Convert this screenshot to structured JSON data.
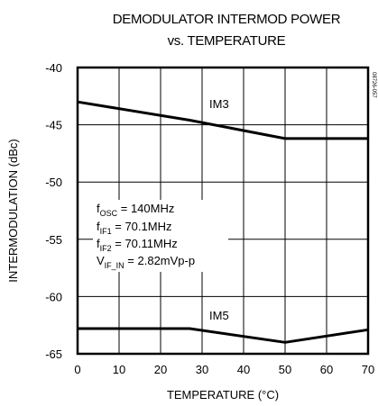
{
  "chart_data": {
    "type": "line",
    "title_lines": [
      "DEMODULATOR INTERMOD POWER",
      "vs. TEMPERATURE"
    ],
    "xlabel": "TEMPERATURE (°C)",
    "ylabel": "INTERMODULATION (dBc)",
    "xlim": [
      0,
      70
    ],
    "ylim": [
      -65,
      -40
    ],
    "x_ticks": [
      0,
      10,
      20,
      30,
      40,
      50,
      60,
      70
    ],
    "y_ticks": [
      -40,
      -45,
      -50,
      -55,
      -60,
      -65
    ],
    "grid": true,
    "series": [
      {
        "name": "IM3",
        "x": [
          0,
          27,
          50,
          70
        ],
        "y": [
          -43.0,
          -44.6,
          -46.2,
          -46.2
        ]
      },
      {
        "name": "IM5",
        "x": [
          0,
          27,
          50,
          70
        ],
        "y": [
          -62.8,
          -62.8,
          -64.0,
          -62.9
        ]
      }
    ],
    "annotations": [
      {
        "main": "f",
        "sub": "OSC",
        "rest": " = 140MHz"
      },
      {
        "main": "f",
        "sub": "IF1",
        "rest": " = 70.1MHz"
      },
      {
        "main": "f",
        "sub": "IF2",
        "rest": " = 70.11MHz"
      },
      {
        "main": "V",
        "sub": "IF_IN",
        "rest": " = 2.82mVp-p"
      }
    ],
    "figure_code": "08726-057"
  }
}
